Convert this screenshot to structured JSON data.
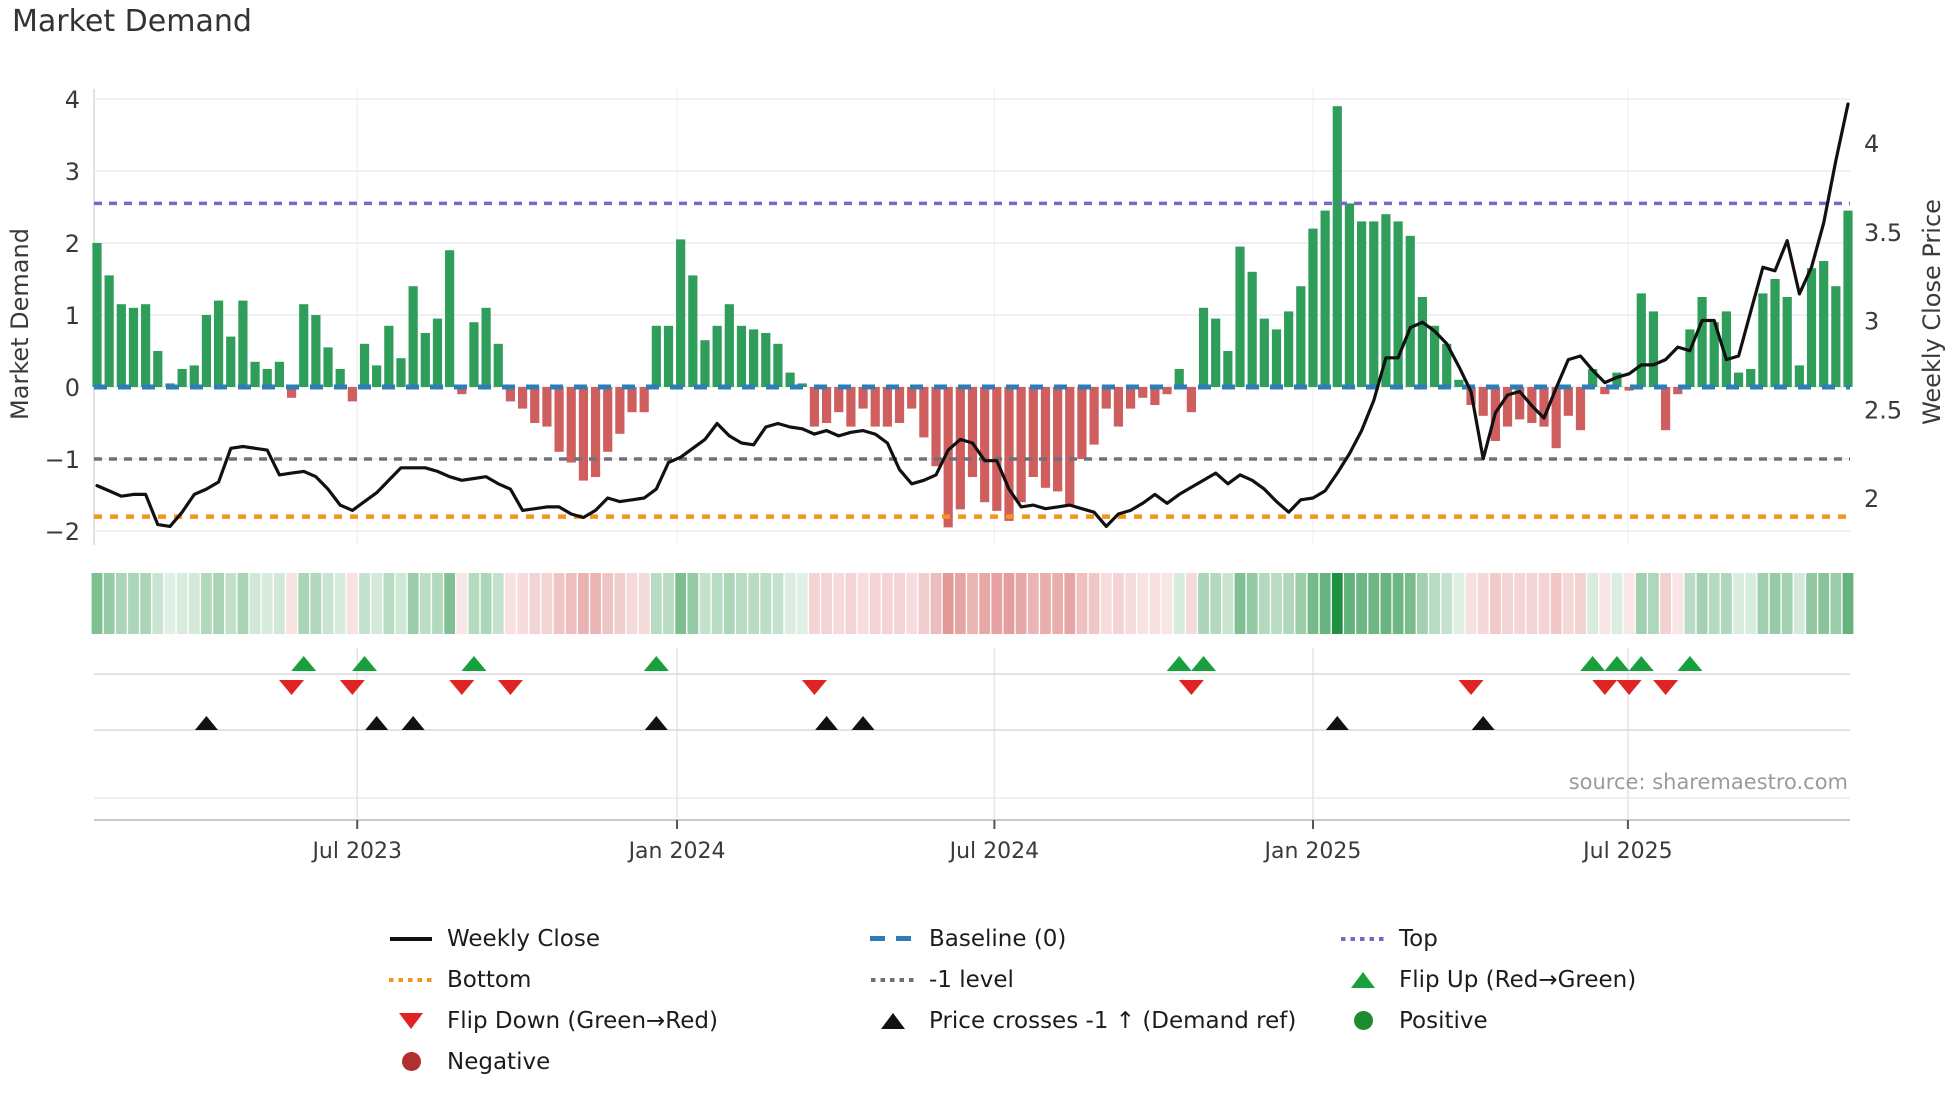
{
  "title": "Market Demand",
  "source": "source: sharemaestro.com",
  "axes": {
    "left_label": "Market Demand",
    "right_label": "Weekly Close Price",
    "left_ticks": [
      "4",
      "3",
      "2",
      "1",
      "0",
      "−1",
      "−2"
    ],
    "right_ticks": [
      "4",
      "3.5",
      "3",
      "2.5",
      "2"
    ]
  },
  "chart_data": {
    "type": "bar",
    "subtype": "combo: weekly demand bars (left axis) + weekly close price line (right axis) + demand heatmap strip + event marker rows",
    "n_weeks": 145,
    "x_ticks": [
      {
        "label": "Jul 2023",
        "week": 21.4
      },
      {
        "label": "Jan 2024",
        "week": 47.7
      },
      {
        "label": "Jul 2024",
        "week": 73.8
      },
      {
        "label": "Jan 2025",
        "week": 100.0
      },
      {
        "label": "Jul 2025",
        "week": 125.9
      }
    ],
    "left_axis_range": [
      -2.19,
      4.14
    ],
    "right_axis_range": [
      1.74,
      4.3
    ],
    "grid": true,
    "legend_position": "bottom",
    "reference_lines": {
      "top": 2.55,
      "baseline": 0,
      "minus_one_level": -1,
      "bottom": -1.8
    },
    "series": [
      {
        "name": "Market Demand",
        "type": "bar",
        "axis": "left",
        "values": [
          2.0,
          1.55,
          1.15,
          1.1,
          1.15,
          0.5,
          0.05,
          0.25,
          0.3,
          1.0,
          1.2,
          0.7,
          1.2,
          0.35,
          0.25,
          0.35,
          -0.15,
          1.15,
          1.0,
          0.55,
          0.25,
          -0.2,
          0.6,
          0.3,
          0.85,
          0.4,
          1.4,
          0.75,
          0.95,
          1.9,
          -0.1,
          0.9,
          1.1,
          0.6,
          -0.2,
          -0.3,
          -0.5,
          -0.55,
          -0.9,
          -1.05,
          -1.3,
          -1.25,
          -0.9,
          -0.65,
          -0.35,
          -0.35,
          0.85,
          0.85,
          2.05,
          1.55,
          0.65,
          0.85,
          1.15,
          0.85,
          0.8,
          0.75,
          0.6,
          0.2,
          0.05,
          -0.55,
          -0.5,
          -0.35,
          -0.55,
          -0.3,
          -0.55,
          -0.55,
          -0.5,
          -0.3,
          -0.7,
          -1.1,
          -1.95,
          -1.7,
          -1.25,
          -1.6,
          -1.72,
          -1.86,
          -1.6,
          -1.25,
          -1.4,
          -1.45,
          -1.65,
          -1.0,
          -0.8,
          -0.3,
          -0.55,
          -0.3,
          -0.15,
          -0.25,
          -0.1,
          0.25,
          -0.35,
          1.1,
          0.95,
          0.5,
          1.95,
          1.6,
          0.95,
          0.8,
          1.05,
          1.4,
          2.2,
          2.45,
          3.9,
          2.55,
          2.3,
          2.3,
          2.4,
          2.3,
          2.1,
          1.25,
          0.85,
          0.6,
          0.1,
          -0.25,
          -0.4,
          -0.75,
          -0.55,
          -0.45,
          -0.5,
          -0.55,
          -0.85,
          -0.4,
          -0.6,
          0.25,
          -0.1,
          0.2,
          -0.05,
          1.3,
          1.05,
          -0.6,
          -0.1,
          0.8,
          1.25,
          0.9,
          1.05,
          0.2,
          0.25,
          1.3,
          1.5,
          1.25,
          0.3,
          1.65,
          1.75,
          1.4,
          2.45
        ]
      },
      {
        "name": "Weekly Close",
        "type": "line",
        "axis": "right",
        "values": [
          2.07,
          2.04,
          2.01,
          2.02,
          2.02,
          1.85,
          1.84,
          1.92,
          2.02,
          2.05,
          2.09,
          2.28,
          2.29,
          2.28,
          2.27,
          2.13,
          2.14,
          2.15,
          2.12,
          2.05,
          1.96,
          1.93,
          1.98,
          2.03,
          2.1,
          2.17,
          2.17,
          2.17,
          2.15,
          2.12,
          2.1,
          2.11,
          2.12,
          2.08,
          2.05,
          1.93,
          1.94,
          1.95,
          1.95,
          1.91,
          1.89,
          1.93,
          2.0,
          1.98,
          1.99,
          2.0,
          2.05,
          2.2,
          2.23,
          2.28,
          2.33,
          2.42,
          2.35,
          2.31,
          2.3,
          2.4,
          2.42,
          2.4,
          2.39,
          2.36,
          2.38,
          2.35,
          2.37,
          2.38,
          2.36,
          2.31,
          2.16,
          2.08,
          2.1,
          2.13,
          2.27,
          2.33,
          2.31,
          2.21,
          2.21,
          2.05,
          1.95,
          1.96,
          1.94,
          1.95,
          1.96,
          1.94,
          1.92,
          1.84,
          1.91,
          1.93,
          1.97,
          2.02,
          1.97,
          2.02,
          2.06,
          2.1,
          2.14,
          2.08,
          2.13,
          2.1,
          2.05,
          1.98,
          1.92,
          1.99,
          2.0,
          2.04,
          2.14,
          2.25,
          2.38,
          2.55,
          2.79,
          2.79,
          2.96,
          2.99,
          2.94,
          2.87,
          2.74,
          2.6,
          2.22,
          2.48,
          2.58,
          2.6,
          2.52,
          2.45,
          2.62,
          2.78,
          2.8,
          2.72,
          2.65,
          2.68,
          2.7,
          2.75,
          2.75,
          2.78,
          2.85,
          2.83,
          3.0,
          3.0,
          2.78,
          2.8,
          3.05,
          3.3,
          3.28,
          3.45,
          3.15,
          3.3,
          3.55,
          3.9,
          4.22
        ]
      }
    ],
    "heatmap": "one cell per week; hue = sign of Market Demand (green positive, red negative), intensity = |value|",
    "markers": {
      "flip_up_weeks": [
        17,
        22,
        31,
        46,
        89,
        91,
        123,
        125,
        127,
        131
      ],
      "flip_down_weeks": [
        16,
        21,
        30,
        34,
        59,
        90,
        113,
        124,
        126,
        129
      ],
      "price_cross_weeks": [
        9,
        23,
        26,
        46,
        60,
        63,
        102,
        114
      ]
    }
  },
  "colors": {
    "positive_bar": "#2f9e5a",
    "negative_bar": "#cf5f5f",
    "price_line": "#111111",
    "baseline": "#2e7cb8",
    "top_line": "#7668cf",
    "bottom_line": "#f5941e",
    "minus_one_line": "#70707c",
    "flip_up": "#18a03c",
    "flip_down": "#e02424",
    "price_cross": "#111111",
    "positive_dot": "#1e8c2e",
    "negative_dot": "#b03030",
    "heat_green": "25,140,60",
    "heat_red": "205,70,70"
  },
  "legend": {
    "items": [
      {
        "label": "Weekly Close",
        "marker": "solid-line",
        "color": "#111111"
      },
      {
        "label": "Baseline (0)",
        "marker": "dashed-line",
        "color": "#2e7cb8"
      },
      {
        "label": "Top",
        "marker": "dotted-line",
        "color": "#7668cf"
      },
      {
        "label": "Bottom",
        "marker": "dotted-line",
        "color": "#f5941e"
      },
      {
        "label": "-1 level",
        "marker": "dotted-line",
        "color": "#70707c"
      },
      {
        "label": "Flip Up (Red→Green)",
        "marker": "triangle-up",
        "color": "#18a03c"
      },
      {
        "label": "Flip Down (Green→Red)",
        "marker": "triangle-down",
        "color": "#e02424"
      },
      {
        "label": "Price crosses -1 ↑ (Demand ref)",
        "marker": "triangle-up",
        "color": "#111111"
      },
      {
        "label": "Positive",
        "marker": "circle",
        "color": "#1e8c2e"
      },
      {
        "label": "Negative",
        "marker": "circle",
        "color": "#b03030"
      }
    ]
  }
}
